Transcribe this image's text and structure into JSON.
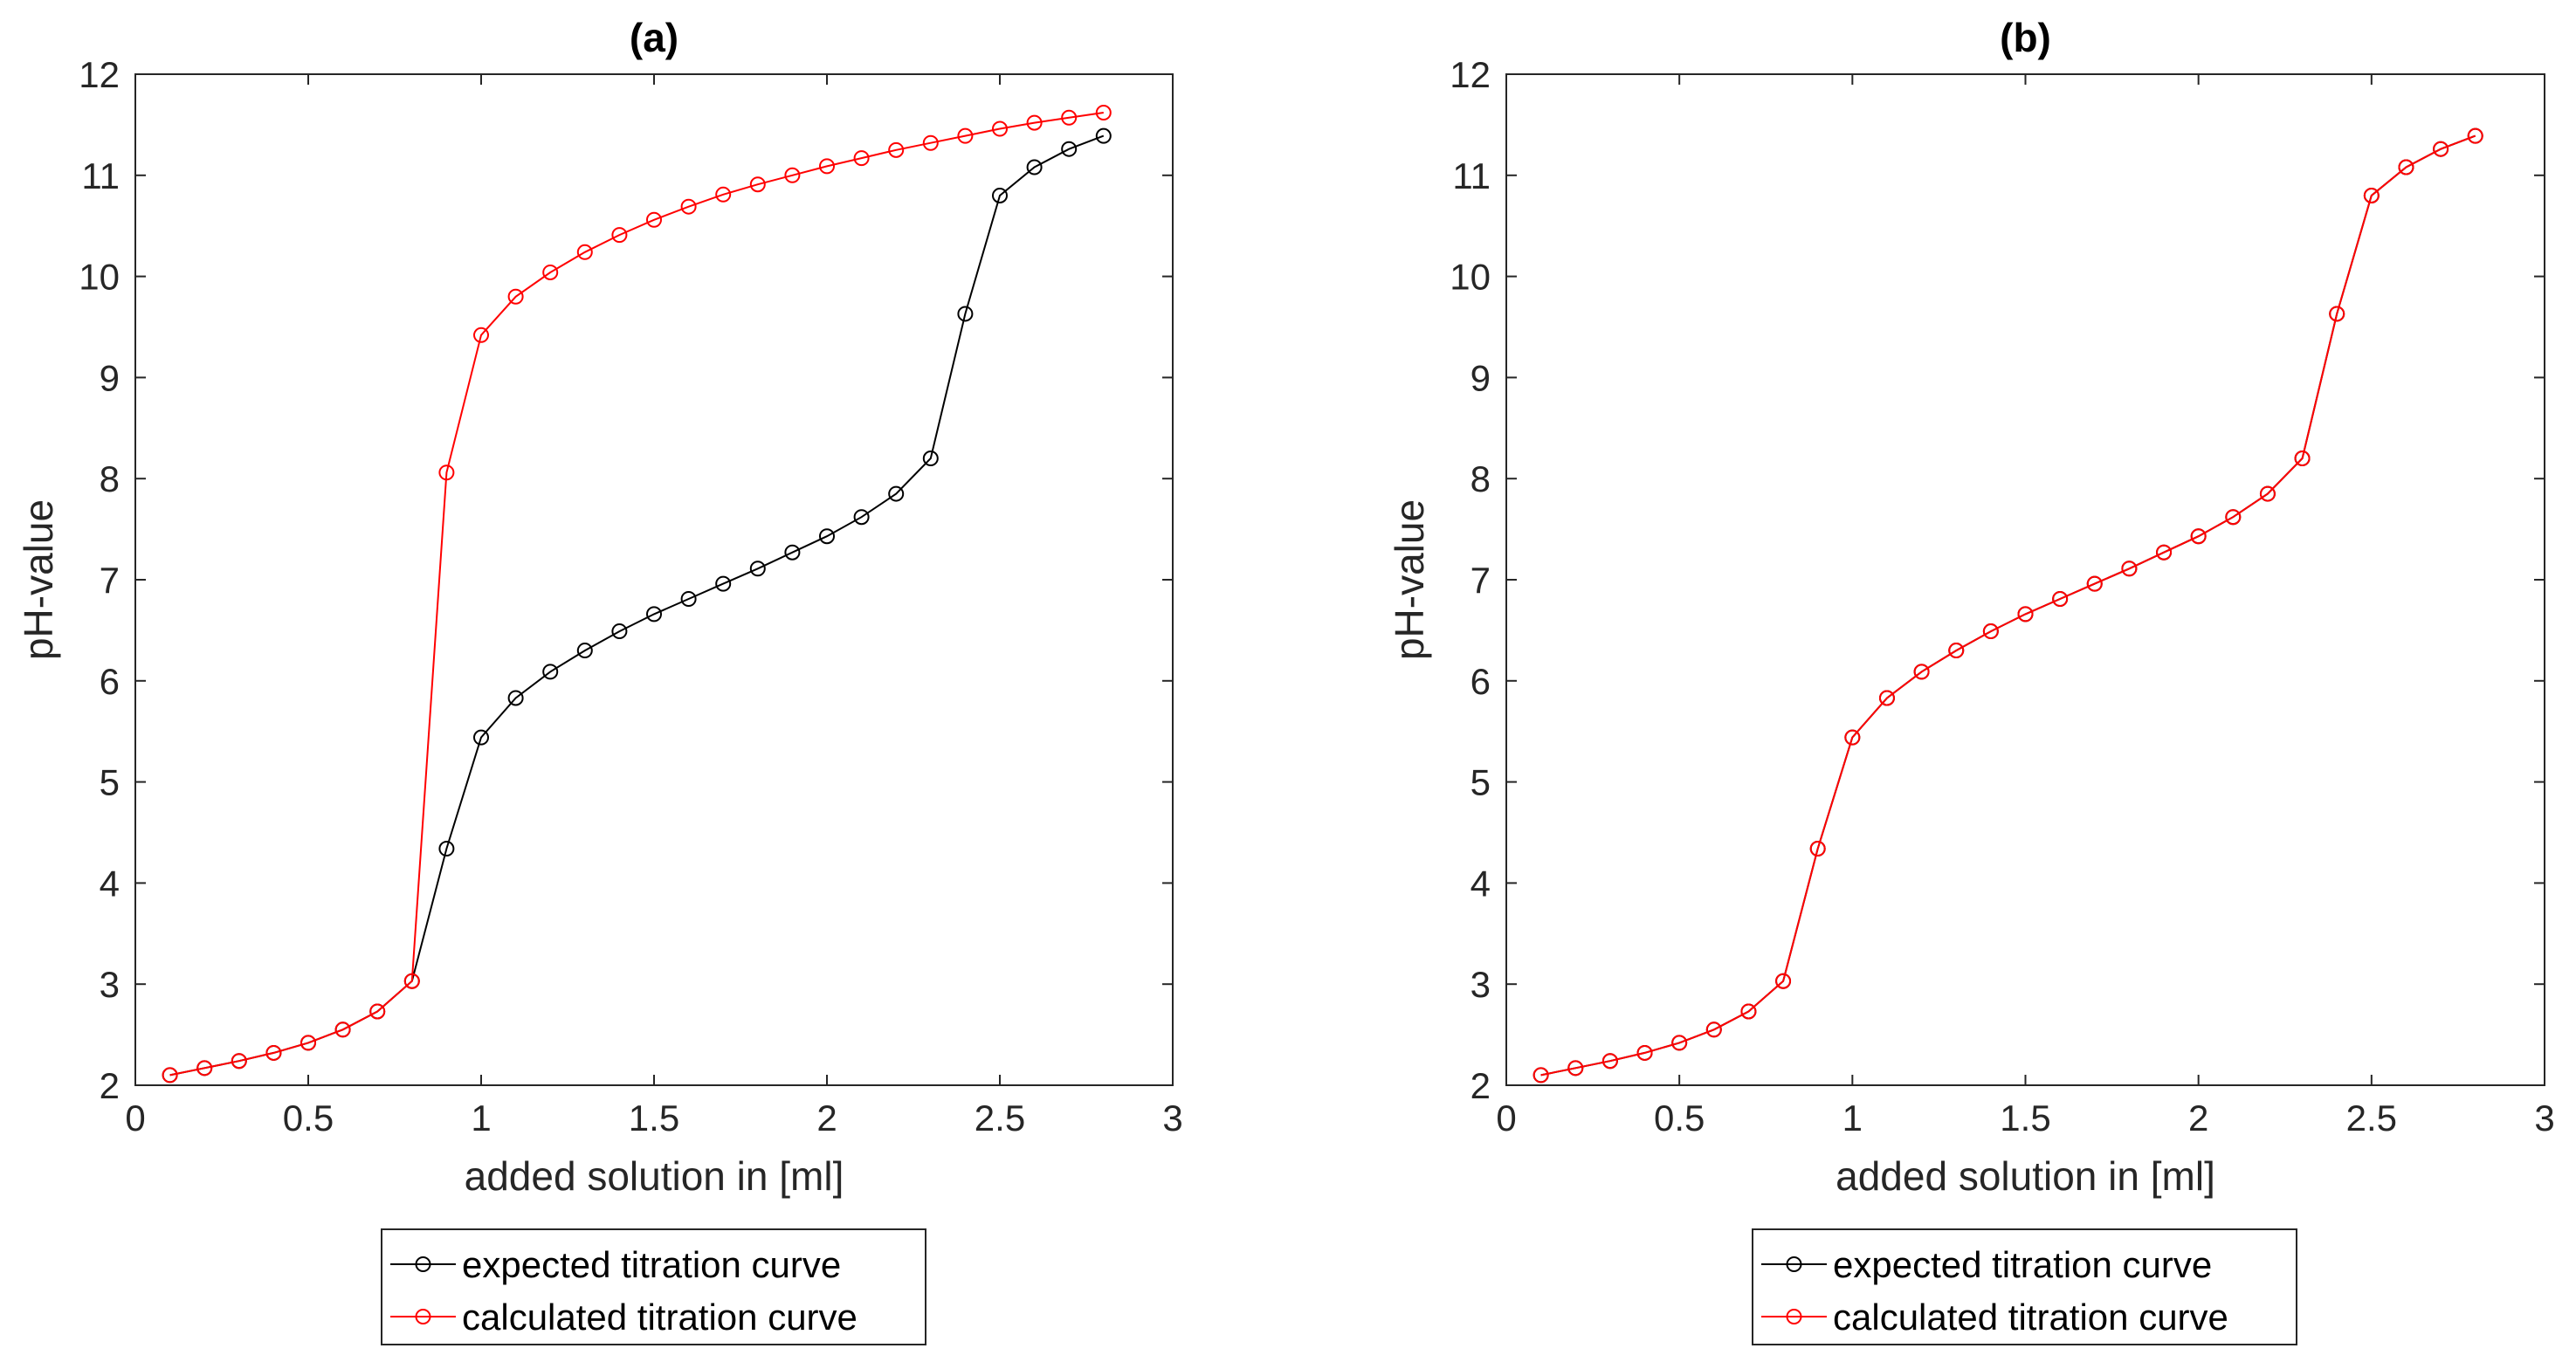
{
  "chart_data": [
    {
      "type": "line",
      "title": "(a)",
      "xlabel": "added solution in [ml]",
      "ylabel": "pH-value",
      "xlim": [
        0,
        3
      ],
      "ylim": [
        2,
        12
      ],
      "xticks": [
        "0",
        "0.5",
        "1",
        "1.5",
        "2",
        "2.5",
        "3"
      ],
      "yticks": [
        "2",
        "3",
        "4",
        "5",
        "6",
        "7",
        "8",
        "9",
        "10",
        "11",
        "12"
      ],
      "grid": false,
      "legend_position": "below",
      "series": [
        {
          "name": "expected titration curve",
          "color": "#000000",
          "marker": "circle",
          "x": [
            0.1,
            0.2,
            0.3,
            0.4,
            0.5,
            0.6,
            0.7,
            0.8,
            0.9,
            1.0,
            1.1,
            1.2,
            1.3,
            1.4,
            1.5,
            1.6,
            1.7,
            1.8,
            1.9,
            2.0,
            2.1,
            2.2,
            2.3,
            2.4,
            2.5,
            2.6,
            2.7,
            2.8
          ],
          "y": [
            2.1,
            2.17,
            2.24,
            2.32,
            2.42,
            2.55,
            2.73,
            3.03,
            4.34,
            5.44,
            5.83,
            6.09,
            6.3,
            6.49,
            6.66,
            6.81,
            6.96,
            7.11,
            7.27,
            7.43,
            7.62,
            7.85,
            8.2,
            9.63,
            10.8,
            11.08,
            11.26,
            11.39
          ]
        },
        {
          "name": "calculated titration curve",
          "color": "#ff0000",
          "marker": "circle",
          "x": [
            0.1,
            0.2,
            0.3,
            0.4,
            0.5,
            0.6,
            0.7,
            0.8,
            0.9,
            1.0,
            1.1,
            1.2,
            1.3,
            1.4,
            1.5,
            1.6,
            1.7,
            1.8,
            1.9,
            2.0,
            2.1,
            2.2,
            2.3,
            2.4,
            2.5,
            2.6,
            2.7,
            2.8
          ],
          "y": [
            2.1,
            2.17,
            2.24,
            2.32,
            2.42,
            2.55,
            2.73,
            3.03,
            8.06,
            9.42,
            9.8,
            10.04,
            10.24,
            10.41,
            10.56,
            10.69,
            10.81,
            10.91,
            11.0,
            11.09,
            11.17,
            11.25,
            11.32,
            11.39,
            11.46,
            11.52,
            11.57,
            11.62
          ]
        }
      ]
    },
    {
      "type": "line",
      "title": "(b)",
      "xlabel": "added solution in [ml]",
      "ylabel": "pH-value",
      "xlim": [
        0,
        3
      ],
      "ylim": [
        2,
        12
      ],
      "xticks": [
        "0",
        "0.5",
        "1",
        "1.5",
        "2",
        "2.5",
        "3"
      ],
      "yticks": [
        "2",
        "3",
        "4",
        "5",
        "6",
        "7",
        "8",
        "9",
        "10",
        "11",
        "12"
      ],
      "grid": false,
      "legend_position": "below",
      "series": [
        {
          "name": "expected titration curve",
          "color": "#000000",
          "marker": "circle",
          "x": [
            0.1,
            0.2,
            0.3,
            0.4,
            0.5,
            0.6,
            0.7,
            0.8,
            0.9,
            1.0,
            1.1,
            1.2,
            1.3,
            1.4,
            1.5,
            1.6,
            1.7,
            1.8,
            1.9,
            2.0,
            2.1,
            2.2,
            2.3,
            2.4,
            2.5,
            2.6,
            2.7,
            2.8
          ],
          "y": [
            2.1,
            2.17,
            2.24,
            2.32,
            2.42,
            2.55,
            2.73,
            3.03,
            4.34,
            5.44,
            5.83,
            6.09,
            6.3,
            6.49,
            6.66,
            6.81,
            6.96,
            7.11,
            7.27,
            7.43,
            7.62,
            7.85,
            8.2,
            9.63,
            10.8,
            11.08,
            11.26,
            11.39
          ]
        },
        {
          "name": "calculated titration curve",
          "color": "#ff0000",
          "marker": "circle",
          "x": [
            0.1,
            0.2,
            0.3,
            0.4,
            0.5,
            0.6,
            0.7,
            0.8,
            0.9,
            1.0,
            1.1,
            1.2,
            1.3,
            1.4,
            1.5,
            1.6,
            1.7,
            1.8,
            1.9,
            2.0,
            2.1,
            2.2,
            2.3,
            2.4,
            2.5,
            2.6,
            2.7,
            2.8
          ],
          "y": [
            2.1,
            2.17,
            2.24,
            2.32,
            2.42,
            2.55,
            2.73,
            3.03,
            4.34,
            5.44,
            5.83,
            6.09,
            6.3,
            6.49,
            6.66,
            6.81,
            6.96,
            7.11,
            7.27,
            7.43,
            7.62,
            7.85,
            8.2,
            9.63,
            10.8,
            11.08,
            11.26,
            11.39
          ]
        }
      ]
    }
  ]
}
